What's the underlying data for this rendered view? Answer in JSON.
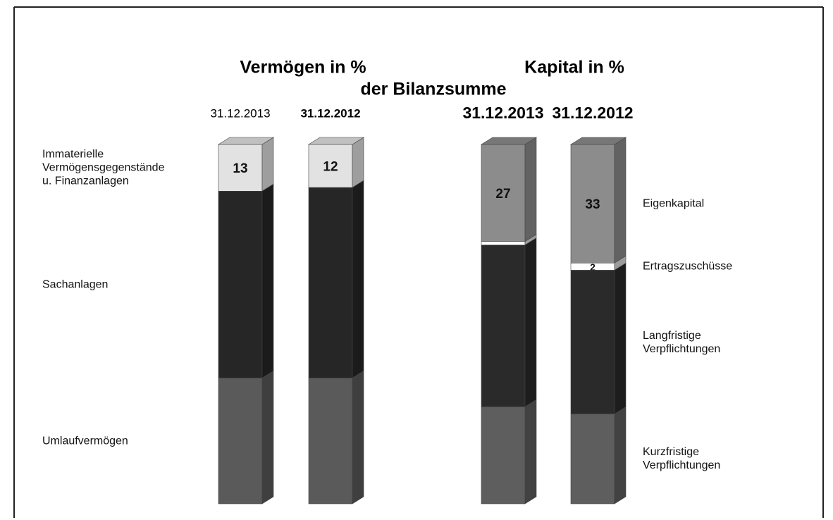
{
  "chart_data": {
    "type": "stacked_bar",
    "title": "der Bilanzsumme",
    "groups": [
      {
        "title": "Vermögen in %",
        "categories": [
          "31.12.2013",
          "31.12.2012"
        ],
        "series": [
          {
            "name": "Immaterielle\nVermögensgegenstände\nu. Finanzanlagen",
            "color": "#e2e2e2",
            "values": [
              13,
              12
            ],
            "value_labels": [
              "13",
              "12"
            ]
          },
          {
            "name": "Sachanlagen",
            "color": "#262626",
            "values": [
              52,
              53
            ],
            "value_labels": [
              null,
              null
            ]
          },
          {
            "name": "Umlaufvermögen",
            "color": "#5a5a5a",
            "values": [
              35,
              35
            ],
            "value_labels": [
              null,
              null
            ]
          }
        ]
      },
      {
        "title": "Kapital in %",
        "categories": [
          "31.12.2013",
          "31.12.2012"
        ],
        "series": [
          {
            "name": "Eigenkapital",
            "color": "#8c8c8c",
            "values": [
              27,
              33
            ],
            "value_labels": [
              "27",
              "33"
            ]
          },
          {
            "name": "Ertragszuschüsse",
            "color": "#ffffff",
            "values": [
              1,
              2
            ],
            "value_labels": [
              null,
              "2"
            ]
          },
          {
            "name": "Langfristige\nVerpflichtungen",
            "color": "#2a2a2a",
            "values": [
              45,
              40
            ],
            "value_labels": [
              null,
              null
            ]
          },
          {
            "name": "Kurzfristige\nVerpflichtungen",
            "color": "#5e5e5e",
            "values": [
              27,
              25
            ],
            "value_labels": [
              null,
              null
            ]
          }
        ]
      }
    ]
  }
}
